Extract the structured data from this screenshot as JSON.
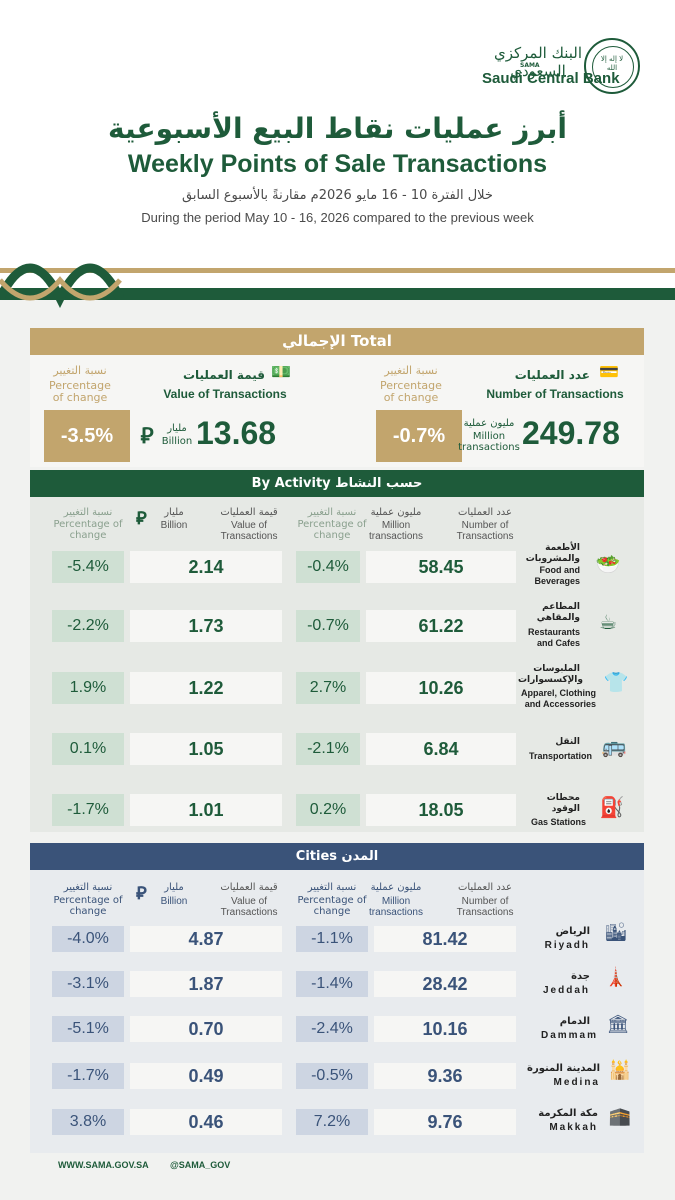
{
  "header": {
    "logo_en": "Saudi Central Bank",
    "logo_ar": "البنك المركزي السعودي",
    "logo_sama": "SAMA",
    "seal_text": "لا إله إلا الله",
    "title_ar": "أبرز عمليات نقاط البيع الأسبوعية",
    "title_en": "Weekly Points of Sale Transactions",
    "period_ar": "خلال الفترة 10 - 16 مايو 2026م مقارنةً بالأسبوع السابق",
    "period_en": "During the period May  10 - 16, 2026 compared to the previous week"
  },
  "colors": {
    "green": "#1e5b3a",
    "gold": "#c2a56d",
    "blue": "#3a5379"
  },
  "total": {
    "title": "الإجمالي  Total",
    "value_pct_ar": "نسبة التغيير",
    "value_pct_en": "Percentage of change",
    "value_head_ar": "قيمة العمليات",
    "value_head_en": "Value of Transactions",
    "value_pct": "-3.5%",
    "value_unit_ar": "مليار",
    "value_unit_en": "Billion",
    "value": "13.68",
    "num_pct_ar": "نسبة التغيير",
    "num_pct_en": "Percentage of change",
    "num_head_ar": "عدد العمليات",
    "num_head_en": "Number of Transactions",
    "num_pct": "-0.7%",
    "num_unit_ar": "مليون عملية",
    "num_unit_en": "Million transactions",
    "num": "249.78"
  },
  "activity": {
    "title": "By Activity  حسب النشاط",
    "h_vpct_ar": "نسبة التغيير",
    "h_vpct_en": "Percentage of change",
    "h_bill_ar": "مليار",
    "h_bill_en": "Billion",
    "h_val_ar": "قيمة العمليات",
    "h_val_en": "Value of Transactions",
    "h_npct_ar": "نسبة التغيير",
    "h_npct_en": "Percentage of change",
    "h_mil_ar": "مليون عملية",
    "h_mil_en": "Million transactions",
    "h_num_ar": "عدد العمليات",
    "h_num_en": "Number of Transactions",
    "rows": [
      {
        "vpct": "-5.4%",
        "val": "2.14",
        "npct": "-0.4%",
        "num": "58.45",
        "name_ar": "الأطعمة والمشروبات",
        "name_en": "Food and Beverages",
        "icon": "food-icon"
      },
      {
        "vpct": "-2.2%",
        "val": "1.73",
        "npct": "-0.7%",
        "num": "61.22",
        "name_ar": "المطاعم والمقاهي",
        "name_en": "Restaurants and Cafes",
        "icon": "cafe-icon"
      },
      {
        "vpct": "1.9%",
        "val": "1.22",
        "npct": "2.7%",
        "num": "10.26",
        "name_ar": "الملبوسات والإكسسوارات",
        "name_en": "Apparel, Clothing and Accessories",
        "icon": "shirt-icon"
      },
      {
        "vpct": "0.1%",
        "val": "1.05",
        "npct": "-2.1%",
        "num": "6.84",
        "name_ar": "النقل",
        "name_en": "Transportation",
        "icon": "bus-icon"
      },
      {
        "vpct": "-1.7%",
        "val": "1.01",
        "npct": "0.2%",
        "num": "18.05",
        "name_ar": "محطات الوقود",
        "name_en": "Gas Stations",
        "icon": "fuel-icon"
      }
    ]
  },
  "cities": {
    "title": "Cities   المدن",
    "h_vpct_ar": "نسبة التغيير",
    "h_vpct_en": "Percentage of change",
    "h_bill_ar": "مليار",
    "h_bill_en": "Billion",
    "h_val_ar": "قيمة العمليات",
    "h_val_en": "Value of Transactions",
    "h_npct_ar": "نسبة التغيير",
    "h_npct_en": "Percentage of change",
    "h_mil_ar": "مليون عملية",
    "h_mil_en": "Million transactions",
    "h_num_ar": "عدد العمليات",
    "h_num_en": "Number of Transactions",
    "rows": [
      {
        "vpct": "-4.0%",
        "val": "4.87",
        "npct": "-1.1%",
        "num": "81.42",
        "name_ar": "الرياض",
        "name_en": "Riyadh",
        "icon": "tower-icon"
      },
      {
        "vpct": "-3.1%",
        "val": "1.87",
        "npct": "-1.4%",
        "num": "28.42",
        "name_ar": "جدة",
        "name_en": "Jeddah",
        "icon": "lighthouse-icon"
      },
      {
        "vpct": "-5.1%",
        "val": "0.70",
        "npct": "-2.4%",
        "num": "10.16",
        "name_ar": "الدمام",
        "name_en": "Dammam",
        "icon": "building-icon"
      },
      {
        "vpct": "-1.7%",
        "val": "0.49",
        "npct": "-0.5%",
        "num": "9.36",
        "name_ar": "المدينة المنورة",
        "name_en": "Medina",
        "icon": "mosque-icon"
      },
      {
        "vpct": "3.8%",
        "val": "0.46",
        "npct": "7.2%",
        "num": "9.76",
        "name_ar": "مكة المكرمة",
        "name_en": "Makkah",
        "icon": "kaaba-icon"
      }
    ]
  },
  "footer": {
    "website": "WWW.SAMA.GOV.SA",
    "handle": "@SAMA_GOV"
  }
}
